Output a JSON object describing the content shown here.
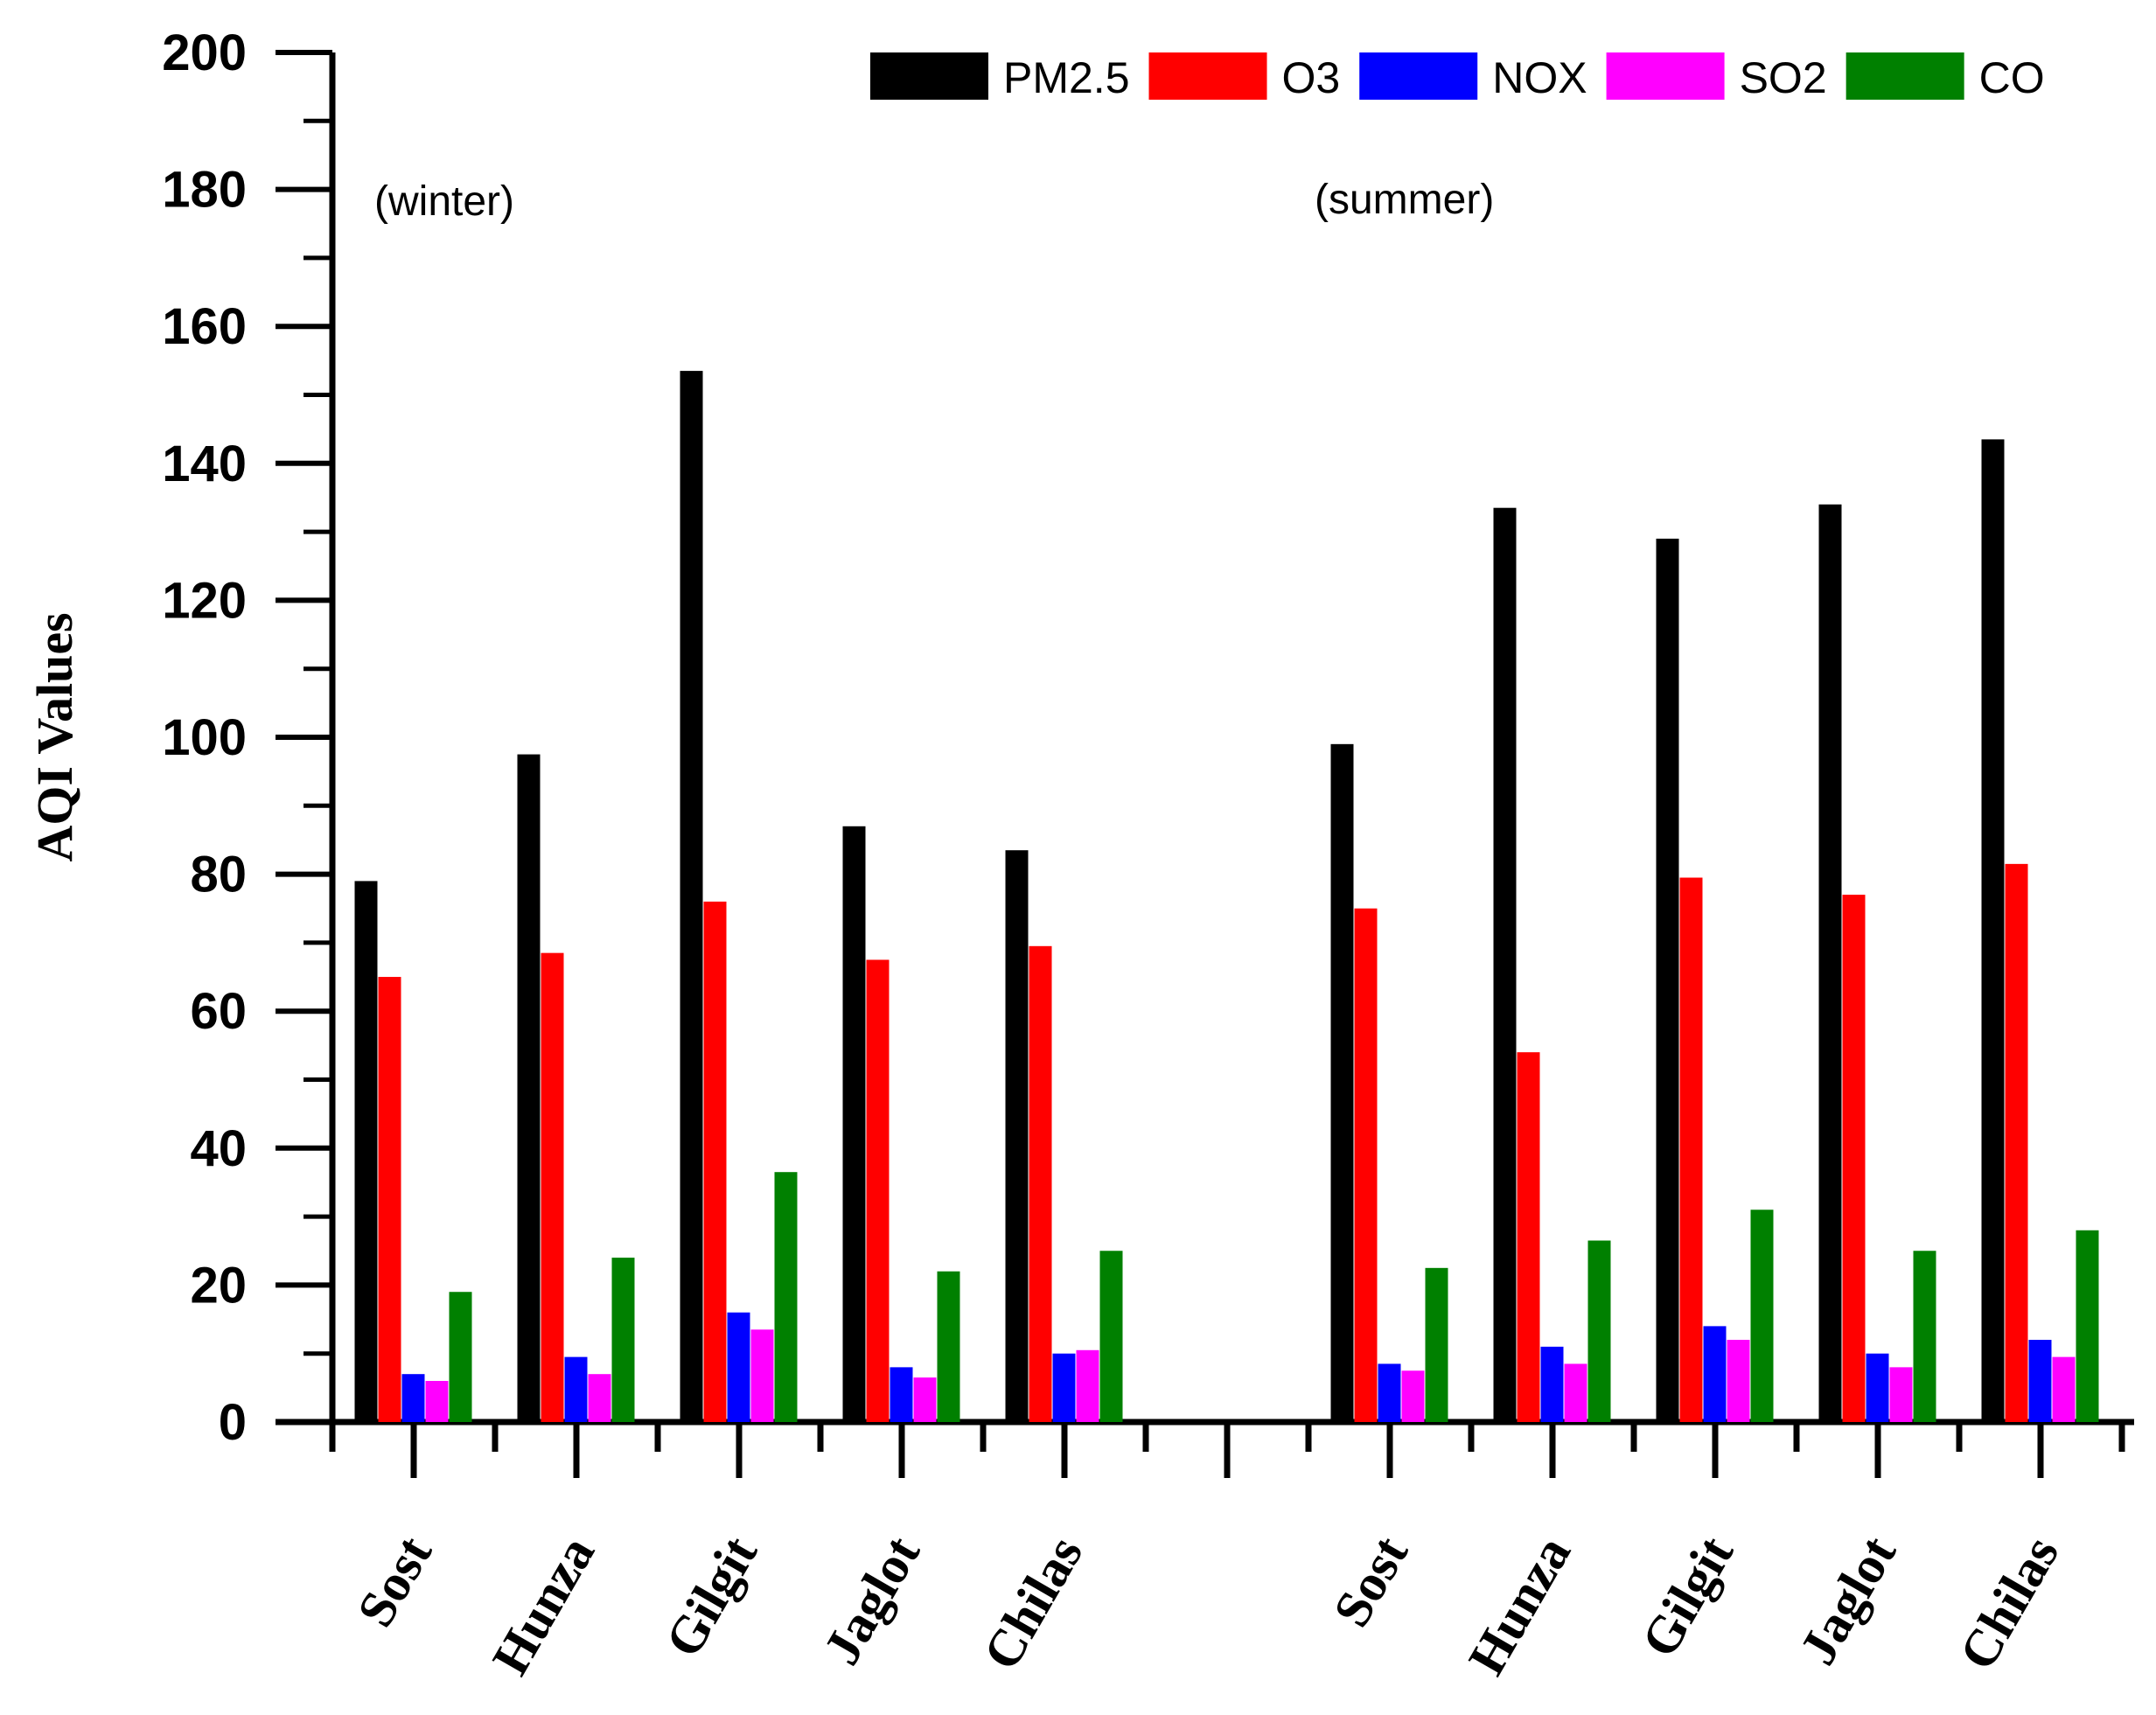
{
  "chart_data": {
    "type": "bar",
    "title": "",
    "xlabel": "",
    "ylabel": "AQI Values",
    "ylim": [
      0,
      200
    ],
    "yticks": [
      0,
      20,
      40,
      60,
      80,
      100,
      120,
      140,
      160,
      180,
      200
    ],
    "grid": false,
    "legend_position": "top-right",
    "annotations": [
      "(winter)",
      "(summer)"
    ],
    "groups": [
      {
        "season": "winter",
        "categories": [
          "Sost",
          "Hunza",
          "Gilgit",
          "Jaglot",
          "Chilas"
        ]
      },
      {
        "season": "summer",
        "categories": [
          "Sost",
          "Hunza",
          "Gilgit",
          "Jaglot",
          "Chilas"
        ]
      }
    ],
    "categories": [
      "Sost",
      "Hunza",
      "Gilgit",
      "Jaglot",
      "Chilas",
      "Sost",
      "Hunza",
      "Gilgit",
      "Jaglot",
      "Chilas"
    ],
    "series": [
      {
        "name": "PM2.5",
        "color": "#000000",
        "values": [
          79,
          97.5,
          153.5,
          87,
          83.5,
          99,
          133.5,
          129,
          134,
          143.5
        ]
      },
      {
        "name": "O3",
        "color": "#ff0000",
        "values": [
          65,
          68.5,
          76,
          67.5,
          69.5,
          75,
          54,
          79.5,
          77,
          81.5
        ]
      },
      {
        "name": "NOX",
        "color": "#0000ff",
        "values": [
          7,
          9.5,
          16,
          8,
          10,
          8.5,
          11,
          14,
          10,
          12
        ]
      },
      {
        "name": "SO2",
        "color": "#ff00ff",
        "values": [
          6,
          7,
          13.5,
          6.5,
          10.5,
          7.5,
          8.5,
          12,
          8,
          9.5
        ]
      },
      {
        "name": "CO",
        "color": "#008000",
        "values": [
          19,
          24,
          36.5,
          22,
          25,
          22.5,
          26.5,
          31,
          25,
          28
        ]
      }
    ]
  }
}
